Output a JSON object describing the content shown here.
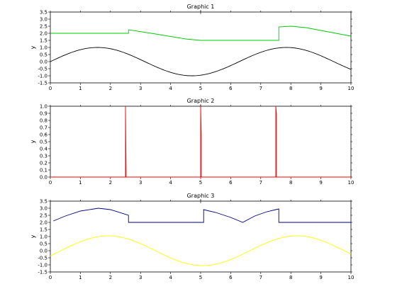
{
  "chart_data": [
    {
      "type": "line",
      "title": "Graphic 1",
      "xlabel": "",
      "ylabel": "y",
      "xlim": [
        0,
        10
      ],
      "ylim": [
        -1.5,
        3.5
      ],
      "grid": false,
      "x_ticks": [
        "0",
        "1",
        "2",
        "3",
        "4",
        "5",
        "6",
        "7",
        "8",
        "9",
        "10"
      ],
      "y_ticks": [
        "-1.5",
        "-1.0",
        "-0.5",
        "0.0",
        "0.5",
        "1.0",
        "1.5",
        "2.0",
        "2.5",
        "3.0",
        "3.5"
      ],
      "series": [
        {
          "color": "#00cc00",
          "x": [
            0,
            2.6,
            2.6,
            3.5,
            4.5,
            5.0,
            7.6,
            7.6,
            8.0,
            8.5,
            9.0,
            9.5,
            10.0
          ],
          "values": [
            2.0,
            2.0,
            2.25,
            1.95,
            1.6,
            1.5,
            1.5,
            2.45,
            2.5,
            2.4,
            2.2,
            2.0,
            1.8
          ]
        },
        {
          "color": "#000000",
          "function": "sin",
          "x_range": [
            0,
            10
          ]
        }
      ]
    },
    {
      "type": "line",
      "title": "Graphic 2",
      "xlabel": "",
      "ylabel": "y",
      "xlim": [
        0,
        10
      ],
      "ylim": [
        0,
        1
      ],
      "grid": false,
      "x_ticks": [
        "0",
        "1",
        "2",
        "3",
        "4",
        "5",
        "6",
        "7",
        "8",
        "9",
        "10"
      ],
      "y_ticks": [
        "0.0",
        "0.1",
        "0.2",
        "0.3",
        "0.4",
        "0.5",
        "0.6",
        "0.7",
        "0.8",
        "0.9",
        "1.0"
      ],
      "series": [
        {
          "color": "#ff0000",
          "x": [
            0,
            2.5,
            2.5,
            2.52,
            2.52,
            5.0,
            5.0,
            5.02,
            5.02,
            7.5,
            7.5,
            7.52,
            7.52,
            10
          ],
          "values": [
            0,
            0,
            1,
            0.1,
            0,
            0,
            1,
            0.6,
            0,
            0,
            1,
            0.9,
            0,
            0
          ]
        }
      ]
    },
    {
      "type": "line",
      "title": "Graphic 3",
      "xlabel": "",
      "ylabel": "y",
      "xlim": [
        0,
        10
      ],
      "ylim": [
        -1.5,
        3.5
      ],
      "grid": false,
      "x_ticks": [
        "0",
        "1",
        "2",
        "3",
        "4",
        "5",
        "6",
        "7",
        "8",
        "9",
        "10"
      ],
      "y_ticks": [
        "-1.5",
        "-1.0",
        "-0.5",
        "0.0",
        "0.5",
        "1.0",
        "1.5",
        "2.0",
        "2.5",
        "3.0",
        "3.5"
      ],
      "series": [
        {
          "color": "#000080",
          "x": [
            0.1,
            0.5,
            1.0,
            1.6,
            2.0,
            2.6,
            2.6,
            5.1,
            5.1,
            5.5,
            6.0,
            6.4,
            6.8,
            7.2,
            7.6,
            7.6,
            10.0
          ],
          "values": [
            2.1,
            2.45,
            2.8,
            3.0,
            2.9,
            2.5,
            2.0,
            2.0,
            2.9,
            2.7,
            2.35,
            2.0,
            2.45,
            2.75,
            2.95,
            2.0,
            2.0
          ]
        },
        {
          "color": "#ffff00",
          "function": "sin_shifted",
          "x_range": [
            0,
            10
          ]
        }
      ]
    }
  ]
}
